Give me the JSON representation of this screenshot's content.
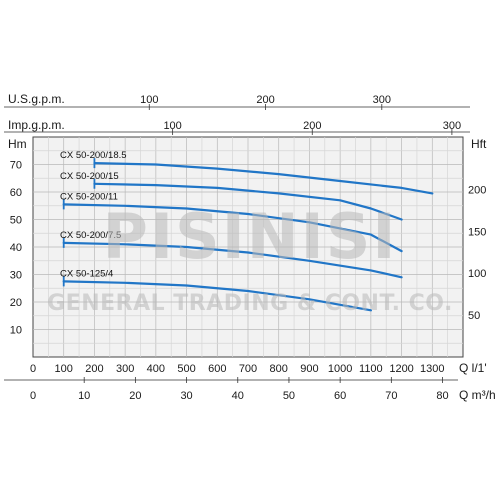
{
  "chart_data": {
    "type": "line",
    "title": "",
    "xlabel": "Q l/1'",
    "ylabel": "Hm",
    "y2label": "Hft",
    "xlim": [
      0,
      1400
    ],
    "ylim": [
      0,
      80
    ],
    "grid": true,
    "x_ticks": [
      0,
      100,
      200,
      300,
      400,
      500,
      600,
      700,
      800,
      900,
      1000,
      1100,
      1200,
      1300
    ],
    "y_ticks": [
      10,
      20,
      30,
      40,
      50,
      60,
      70
    ],
    "top_axes": [
      {
        "label": "U.S.g.p.m.",
        "ticks": [
          100,
          200,
          300
        ]
      },
      {
        "label": "Imp.g.p.m.",
        "ticks": [
          100,
          200,
          300
        ]
      }
    ],
    "bottom_axis2": {
      "label": "Q m³/h",
      "ticks": [
        10,
        20,
        30,
        40,
        50,
        60,
        70,
        80
      ]
    },
    "right_axis": {
      "label": "Hft",
      "ticks": [
        50,
        100,
        150,
        200
      ]
    },
    "series": [
      {
        "name": "CX 50-200/18.5",
        "x": [
          200,
          400,
          600,
          800,
          1000,
          1200,
          1300
        ],
        "y": [
          70.5,
          70,
          68.5,
          66.5,
          64,
          61.5,
          59.5
        ]
      },
      {
        "name": "CX 50-200/15",
        "x": [
          200,
          400,
          600,
          800,
          1000,
          1100,
          1200
        ],
        "y": [
          63,
          62.5,
          61.5,
          59.5,
          57,
          54,
          50
        ]
      },
      {
        "name": "CX 50-200/11",
        "x": [
          100,
          300,
          500,
          700,
          900,
          1100,
          1200
        ],
        "y": [
          55.5,
          55,
          54,
          52,
          49,
          44.5,
          38.5
        ]
      },
      {
        "name": "CX 50-200/7.5",
        "x": [
          100,
          300,
          500,
          700,
          900,
          1100,
          1200
        ],
        "y": [
          41.5,
          41,
          40,
          38,
          35,
          31.5,
          29
        ]
      },
      {
        "name": "CX 50-125/4",
        "x": [
          100,
          300,
          500,
          700,
          900,
          1100
        ],
        "y": [
          27.5,
          27,
          26,
          24,
          21,
          17
        ]
      }
    ],
    "series_color": "#2176c7"
  },
  "watermark": {
    "line1": "PISINISI",
    "line2": "GENERAL TRADING & CONT. CO."
  }
}
